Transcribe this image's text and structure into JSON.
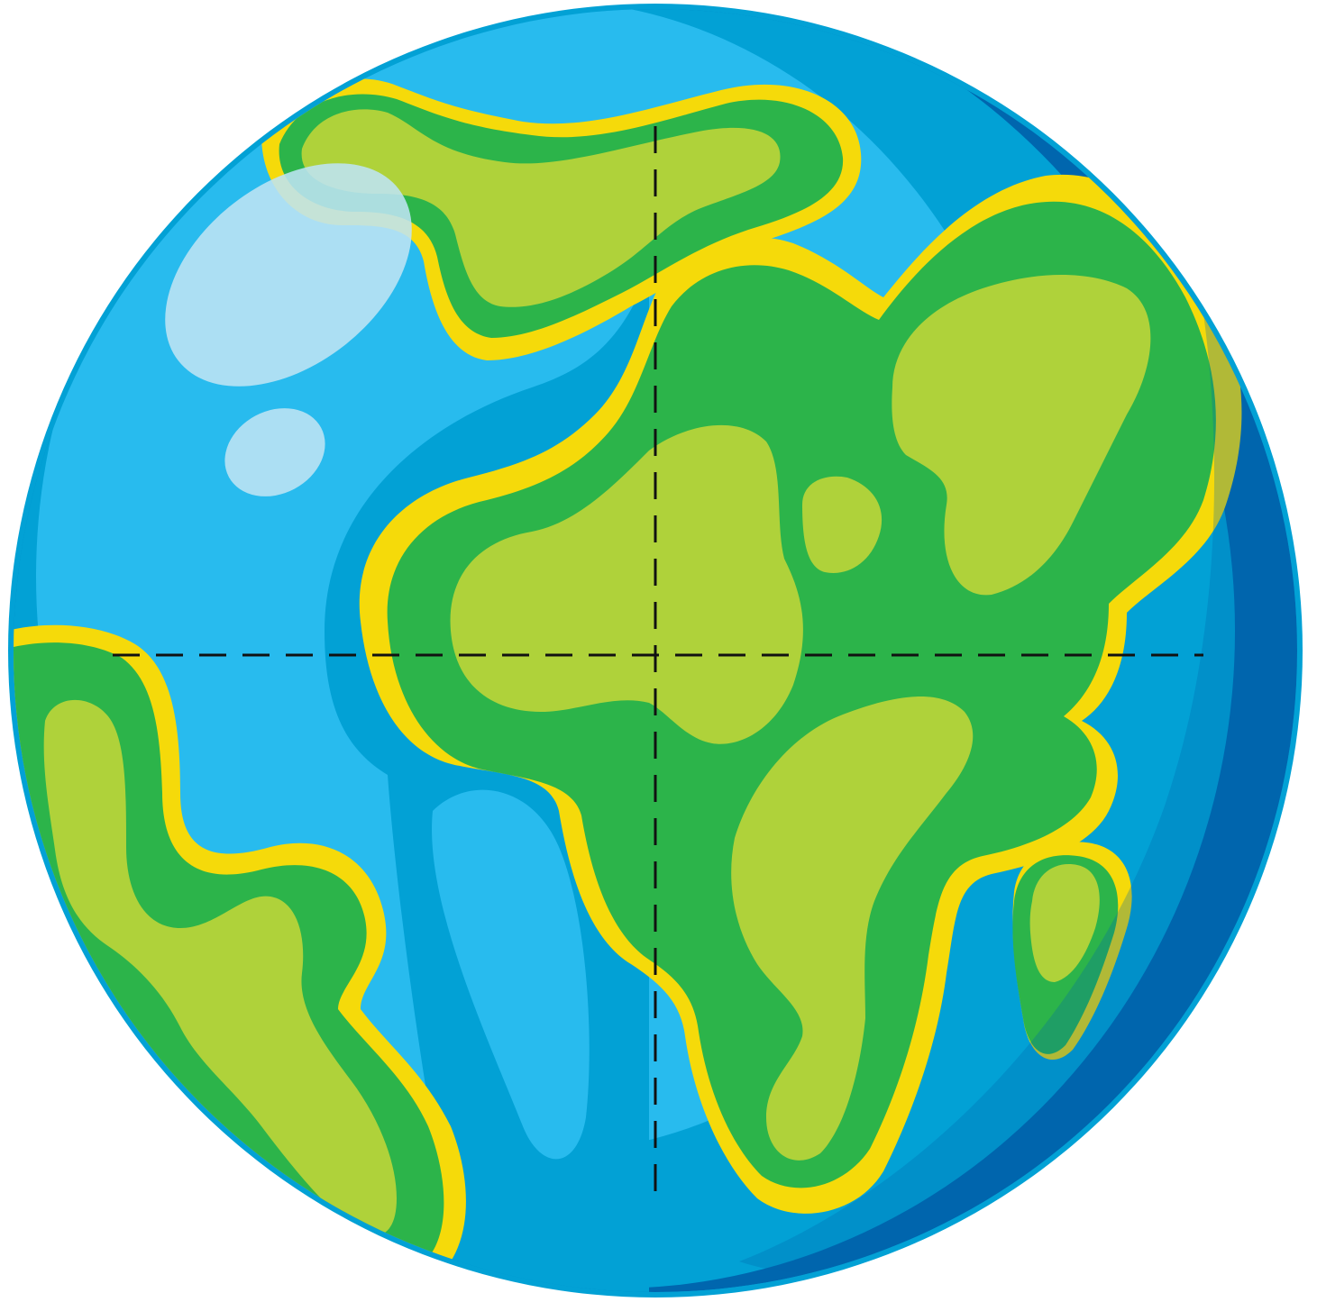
{
  "illustration": {
    "subject": "globe",
    "colors": {
      "ocean_light": "#28BBEE",
      "ocean_mid": "#02A1D5",
      "ocean_dark": "#0066AE",
      "ocean_band": "#0A8AC9",
      "land_outline": "#F5DA0A",
      "land_dark": "#2CB44A",
      "land_light": "#AFD23A",
      "highlight": "#BEE4F4",
      "guide_line": "#111111"
    },
    "guides": {
      "style": "dashed",
      "lines": [
        "equator",
        "prime-meridian"
      ]
    }
  }
}
